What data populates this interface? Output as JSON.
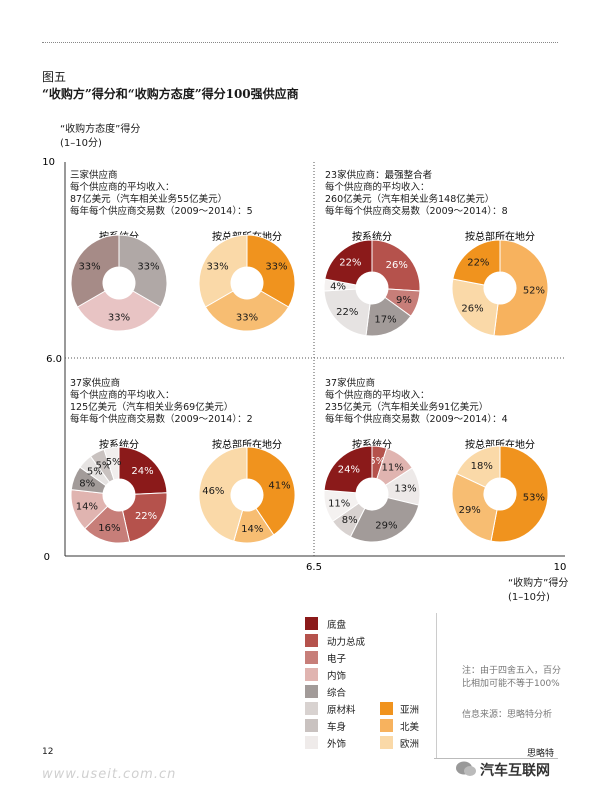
{
  "figure": {
    "label": "图五",
    "title": "“收购方”得分和“收购方态度”得分100强供应商"
  },
  "axes": {
    "y_label_line1": "“收购方态度”得分",
    "y_label_line2": "(1–10分)",
    "x_label_line1": "“收购方”得分",
    "x_label_line2": "(1–10分)",
    "y_tick_top": "10",
    "y_tick_mid": "6.0",
    "y_tick_bottom": "0",
    "x_tick_mid": "6.5",
    "x_tick_right": "10"
  },
  "chart_data": {
    "type": "pie",
    "x_axis": {
      "label": "“收购方”得分",
      "range": [
        0,
        10
      ],
      "split": 6.5
    },
    "y_axis": {
      "label": "“收购方态度”得分",
      "range": [
        0,
        10
      ],
      "split": 6.0
    },
    "system_categories": [
      "底盘",
      "动力总成",
      "电子",
      "内饰",
      "综合",
      "原材料",
      "车身",
      "外饰"
    ],
    "region_categories": [
      "亚洲",
      "北美",
      "欧洲"
    ],
    "quadrants": [
      {
        "id": "top-left",
        "lines": [
          "三家供应商",
          "每个供应商的平均收入：",
          "87亿美元（汽车相关业务55亿美元）",
          "每年每个供应商交易数（2009～2014）：5"
        ],
        "pie1_title": "按系统分",
        "pie2_title": "按总部所在地分",
        "pie1": [
          {
            "category": "综合",
            "value": 33,
            "label": "33%",
            "color": "#b0a8a6"
          },
          {
            "category": "原材料",
            "value": 33,
            "label": "33%",
            "color": "#e8c4c4"
          },
          {
            "category": "车身",
            "value": 33,
            "label": "33%",
            "color": "#a68b87"
          }
        ],
        "pie2": [
          {
            "category": "亚洲",
            "value": 33,
            "label": "33%",
            "color": "#f0931e"
          },
          {
            "category": "北美",
            "value": 33,
            "label": "33%",
            "color": "#f7bd72"
          },
          {
            "category": "欧洲",
            "value": 33,
            "label": "33%",
            "color": "#fad9a8"
          }
        ]
      },
      {
        "id": "top-right",
        "lines": [
          "23家供应商：最强整合者",
          "每个供应商的平均收入：",
          "260亿美元（汽车相关业务148亿美元）",
          "每年每个供应商交易数（2009～2014）：8"
        ],
        "pie1_title": "按系统分",
        "pie2_title": "按总部所在地分",
        "pie1": [
          {
            "category": "动力总成",
            "value": 26,
            "label": "26%",
            "color": "#b5524c"
          },
          {
            "category": "电子",
            "value": 9,
            "label": "9%",
            "color": "#c77e79"
          },
          {
            "category": "内饰",
            "value": 17,
            "label": "17%",
            "color": "#a29b99"
          },
          {
            "category": "综合",
            "value": 22,
            "label": "22%",
            "color": "#e6e3e2"
          },
          {
            "category": "原材料",
            "value": 4,
            "label": "4%",
            "color": "#f4f1f0"
          },
          {
            "category": "底盘",
            "value": 22,
            "label": "22%",
            "color": "#8b1a1a"
          }
        ],
        "pie2": [
          {
            "category": "北美",
            "value": 52,
            "label": "52%",
            "color": "#f7b25e"
          },
          {
            "category": "欧洲",
            "value": 26,
            "label": "26%",
            "color": "#fad9a8"
          },
          {
            "category": "亚洲",
            "value": 22,
            "label": "22%",
            "color": "#f0931e"
          }
        ]
      },
      {
        "id": "bottom-left",
        "lines": [
          "37家供应商",
          "每个供应商的平均收入：",
          "125亿美元（汽车相关业务69亿美元）",
          "每年每个供应商交易数（2009～2014）：2"
        ],
        "pie1_title": "按系统分",
        "pie2_title": "按总部所在地分",
        "pie1": [
          {
            "category": "底盘",
            "value": 24,
            "label": "24%",
            "color": "#8b1a1a"
          },
          {
            "category": "动力总成",
            "value": 22,
            "label": "22%",
            "color": "#b5524c"
          },
          {
            "category": "电子",
            "value": 16,
            "label": "16%",
            "color": "#c77e79"
          },
          {
            "category": "内饰",
            "value": 14,
            "label": "14%",
            "color": "#e0b4b0"
          },
          {
            "category": "综合",
            "value": 8,
            "label": "8%",
            "color": "#a29b99"
          },
          {
            "category": "原材料",
            "value": 5,
            "label": "5%",
            "color": "#e6e3e2"
          },
          {
            "category": "车身",
            "value": 5,
            "label": "5%",
            "color": "#c9c2c0"
          },
          {
            "category": "外饰",
            "value": 5,
            "label": "5%",
            "color": "#f1eeed"
          }
        ],
        "pie2": [
          {
            "category": "亚洲",
            "value": 41,
            "label": "41%",
            "color": "#f0931e"
          },
          {
            "category": "北美",
            "value": 14,
            "label": "14%",
            "color": "#f7bd72"
          },
          {
            "category": "欧洲",
            "value": 46,
            "label": "46%",
            "color": "#fad9a8"
          }
        ]
      },
      {
        "id": "bottom-right",
        "lines": [
          "37家供应商",
          "每个供应商的平均收入：",
          "235亿美元（汽车相关业务91亿美元）",
          "每年每个供应商交易数（2009～2014）：4"
        ],
        "pie1_title": "按系统分",
        "pie2_title": "按总部所在地分",
        "pie1": [
          {
            "category": "动力总成",
            "value": 5,
            "label": "5%",
            "color": "#b5524c"
          },
          {
            "category": "电子",
            "value": 11,
            "label": "11%",
            "color": "#e0b4b0"
          },
          {
            "category": "内饰",
            "value": 13,
            "label": "13%",
            "color": "#ede9e8"
          },
          {
            "category": "综合",
            "value": 29,
            "label": "29%",
            "color": "#a29b99"
          },
          {
            "category": "原材料",
            "value": 8,
            "label": "8%",
            "color": "#d8d2d0"
          },
          {
            "category": "车身",
            "value": 11,
            "label": "11%",
            "color": "#f4f1f0"
          },
          {
            "category": "底盘",
            "value": 24,
            "label": "24%",
            "color": "#8b1a1a"
          }
        ],
        "pie2": [
          {
            "category": "亚洲",
            "value": 53,
            "label": "53%",
            "color": "#f0931e"
          },
          {
            "category": "北美",
            "value": 29,
            "label": "29%",
            "color": "#f7bd72"
          },
          {
            "category": "欧洲",
            "value": 18,
            "label": "18%",
            "color": "#fad9a8"
          }
        ]
      }
    ]
  },
  "legend": {
    "system": [
      {
        "label": "底盘",
        "color": "#8b1a1a"
      },
      {
        "label": "动力总成",
        "color": "#b5524c"
      },
      {
        "label": "电子",
        "color": "#c77e79"
      },
      {
        "label": "内饰",
        "color": "#e0b4b0"
      },
      {
        "label": "综合",
        "color": "#a29b99"
      },
      {
        "label": "原材料",
        "color": "#d8d2d0"
      },
      {
        "label": "车身",
        "color": "#c9c2c0"
      },
      {
        "label": "外饰",
        "color": "#efebea"
      }
    ],
    "region": [
      {
        "label": "亚洲",
        "color": "#f0931e"
      },
      {
        "label": "北美",
        "color": "#f7b25e"
      },
      {
        "label": "欧洲",
        "color": "#fad9a8"
      }
    ]
  },
  "note": {
    "line1": "注：由于四舍五入，百分",
    "line2": "比相加可能不等于100%",
    "source": "信息来源：思略特分析"
  },
  "footer": {
    "page_number": "12",
    "publisher": "思略特",
    "watermark": "www.useit.com.cn",
    "wechat": "汽车互联网"
  }
}
